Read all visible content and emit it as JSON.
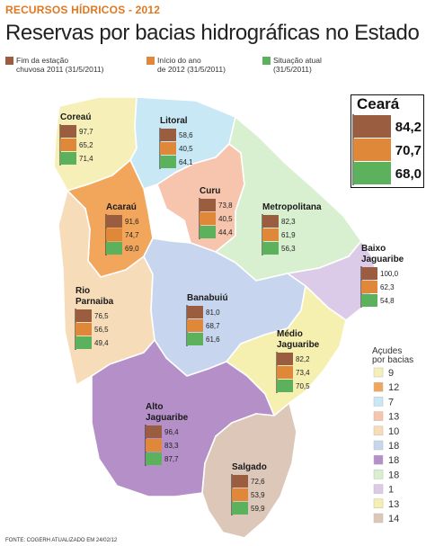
{
  "header": {
    "kicker": "RECURSOS HÍDRICOS - 2012",
    "title": "Reservas por bacias hidrográficas no Estado"
  },
  "legend": [
    {
      "label": "Fim da estação chuvosa 2011 (31/5/2011)",
      "lines": [
        "Fim da estação",
        "chuvosa 2011 (31/5/2011)"
      ],
      "color": "#9b5d3f"
    },
    {
      "label": "Início do ano de 2012 (31/5/2011)",
      "lines": [
        "Início do ano",
        "de 2012 (31/5/2011)"
      ],
      "color": "#e0883a"
    },
    {
      "label": "Situação atual (31/5/2011)",
      "lines": [
        "Situação atual",
        "(31/5/2011)"
      ],
      "color": "#5cb25c"
    }
  ],
  "acudes_legend": {
    "title": [
      "Açudes",
      "por bacias"
    ],
    "items": [
      {
        "count": "9",
        "color": "#f6f0b8"
      },
      {
        "count": "12",
        "color": "#f2a65b"
      },
      {
        "count": "7",
        "color": "#c8e8f6"
      },
      {
        "count": "13",
        "color": "#f7c5ad"
      },
      {
        "count": "10",
        "color": "#f6dcb8"
      },
      {
        "count": "18",
        "color": "#c7d6ee"
      },
      {
        "count": "18",
        "color": "#b58fc8"
      },
      {
        "count": "18",
        "color": "#d8efd0"
      },
      {
        "count": "1",
        "color": "#dccbe8"
      },
      {
        "count": "13",
        "color": "#f6f0b0"
      },
      {
        "count": "14",
        "color": "#dcc7b8"
      }
    ]
  },
  "state": {
    "name": "Ceará",
    "values": [
      "84,2",
      "70,7",
      "68,0"
    ]
  },
  "chart_data": {
    "type": "bar",
    "title": "Reservas por bacias hidrográficas no Estado",
    "unit": "%",
    "categories": [
      "Coreaú",
      "Litoral",
      "Acaraú",
      "Curu",
      "Metropolitana",
      "Baixo Jaguaribe",
      "Rio Parnaíba",
      "Banabuiú",
      "Médio Jaguaribe",
      "Alto Jaguaribe",
      "Salgado"
    ],
    "labels": [
      [
        "Coreaú"
      ],
      [
        "Litoral"
      ],
      [
        "Acaraú"
      ],
      [
        "Curu"
      ],
      [
        "Metropolitana"
      ],
      [
        "Baixo",
        "Jaguaribe"
      ],
      [
        "Rio",
        "Parnaiba"
      ],
      [
        "Banabuiú"
      ],
      [
        "Médio",
        "Jaguaribe"
      ],
      [
        "Alto",
        "Jaguaribe"
      ],
      [
        "Salgado"
      ]
    ],
    "series": [
      {
        "name": "Fim da estação chuvosa 2011 (31/5/2011)",
        "values": [
          97.7,
          58.6,
          91.6,
          73.8,
          82.3,
          100.0,
          76.5,
          81.0,
          82.2,
          96.4,
          72.6
        ],
        "display": [
          "97,7",
          "58,6",
          "91,6",
          "73,8",
          "82,3",
          "100,0",
          "76,5",
          "81,0",
          "82,2",
          "96,4",
          "72,6"
        ]
      },
      {
        "name": "Início do ano de 2012 (31/5/2011)",
        "values": [
          65.2,
          40.5,
          74.7,
          40.5,
          61.9,
          62.3,
          56.5,
          68.7,
          73.4,
          83.3,
          53.9
        ],
        "display": [
          "65,2",
          "40,5",
          "74,7",
          "40,5",
          "61,9",
          "62,3",
          "56,5",
          "68,7",
          "73,4",
          "83,3",
          "53,9"
        ]
      },
      {
        "name": "Situação atual (31/5/2011)",
        "values": [
          71.4,
          64.1,
          69.0,
          44.4,
          56.3,
          54.8,
          49.4,
          61.6,
          70.5,
          87.7,
          59.9
        ],
        "display": [
          "71,4",
          "64,1",
          "69,0",
          "44,4",
          "56,3",
          "54,8",
          "49,4",
          "61,6",
          "70,5",
          "87,7",
          "59,9"
        ]
      }
    ],
    "state_totals": {
      "name": "Ceará",
      "values": [
        84.2,
        70.7,
        68.0
      ]
    }
  },
  "footer": {
    "source": "FONTE: COGERH ATUALIZADO EM 24/02/12"
  }
}
